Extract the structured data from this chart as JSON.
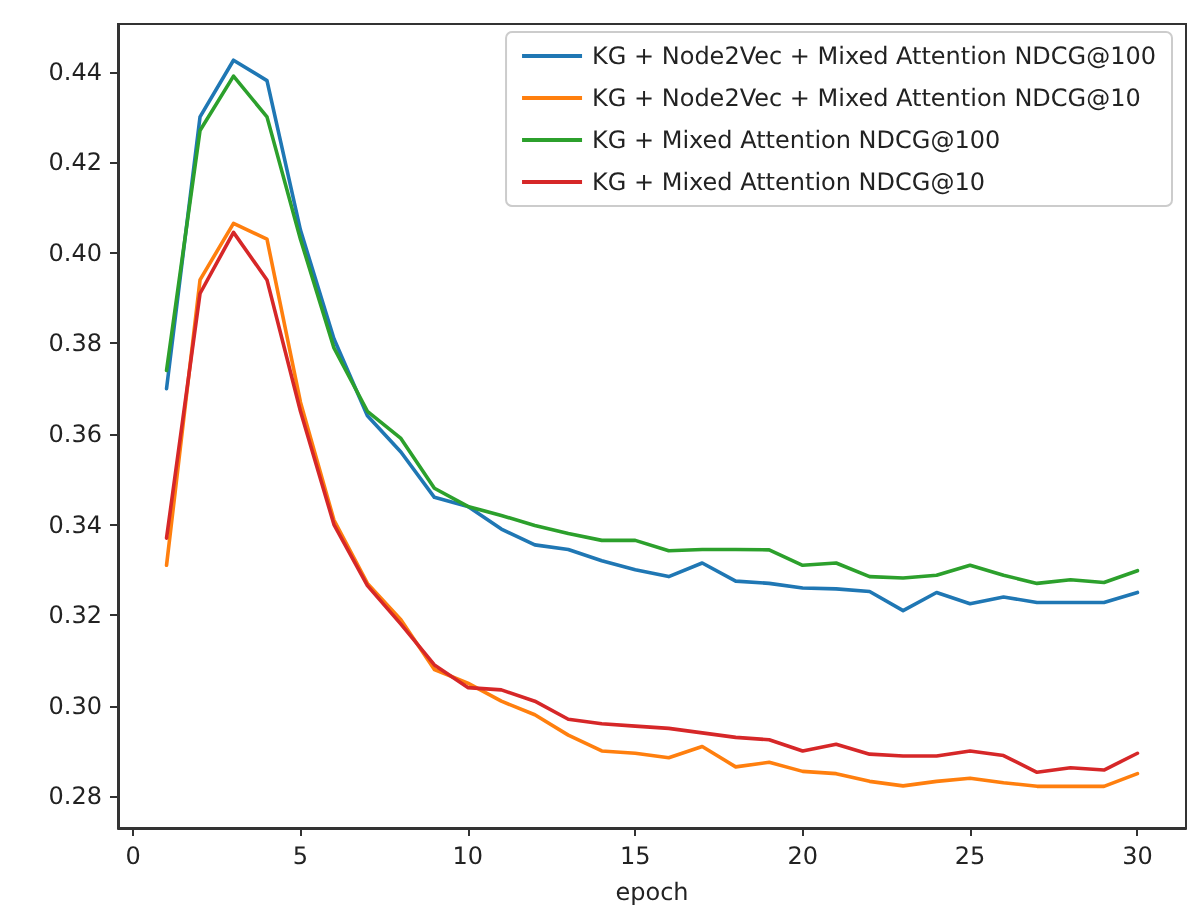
{
  "chart_data": {
    "type": "line",
    "xlabel": "epoch",
    "legend": "top right",
    "grid": false,
    "marker": "none",
    "line_style": "solid",
    "x": [
      1,
      2,
      3,
      4,
      5,
      6,
      7,
      8,
      9,
      10,
      11,
      12,
      13,
      14,
      15,
      16,
      17,
      18,
      19,
      20,
      21,
      22,
      23,
      24,
      25,
      26,
      27,
      28,
      29,
      30
    ],
    "xlim": [
      -0.45,
      31.45
    ],
    "xticks": [
      0,
      5,
      10,
      15,
      20,
      25,
      30
    ],
    "ylim": [
      0.273,
      0.4505
    ],
    "yticks": [
      {
        "value": 0.28,
        "label": "0.28"
      },
      {
        "value": 0.3,
        "label": "0.30"
      },
      {
        "value": 0.32,
        "label": "0.32"
      },
      {
        "value": 0.34,
        "label": "0.34"
      },
      {
        "value": 0.36,
        "label": "0.36"
      },
      {
        "value": 0.38,
        "label": "0.38"
      },
      {
        "value": 0.4,
        "label": "0.40"
      },
      {
        "value": 0.42,
        "label": "0.42"
      },
      {
        "value": 0.44,
        "label": "0.44"
      }
    ],
    "series": [
      {
        "name": "KG + Node2Vec + Mixed Attention NDCG@100",
        "color": "#1f77b4",
        "values": [
          0.37,
          0.43,
          0.4425,
          0.438,
          0.405,
          0.381,
          0.364,
          0.356,
          0.346,
          0.344,
          0.339,
          0.3355,
          0.3345,
          0.332,
          0.33,
          0.3285,
          0.3315,
          0.3275,
          0.327,
          0.326,
          0.3258,
          0.3252,
          0.321,
          0.325,
          0.3225,
          0.324,
          0.3228,
          0.3228,
          0.3228,
          0.325
        ]
      },
      {
        "name": "KG + Node2Vec + Mixed Attention NDCG@10",
        "color": "#ff7f0e",
        "values": [
          0.331,
          0.394,
          0.4065,
          0.403,
          0.367,
          0.341,
          0.327,
          0.319,
          0.308,
          0.305,
          0.301,
          0.298,
          0.2935,
          0.29,
          0.2895,
          0.2885,
          0.291,
          0.2865,
          0.2875,
          0.2855,
          0.285,
          0.2833,
          0.2823,
          0.2833,
          0.284,
          0.283,
          0.2822,
          0.2822,
          0.2822,
          0.285
        ]
      },
      {
        "name": "KG + Mixed Attention NDCG@100",
        "color": "#2ca02c",
        "values": [
          0.374,
          0.427,
          0.439,
          0.43,
          0.403,
          0.379,
          0.365,
          0.359,
          0.348,
          0.344,
          0.342,
          0.3398,
          0.338,
          0.3365,
          0.3365,
          0.3342,
          0.3345,
          0.3345,
          0.3344,
          0.331,
          0.3315,
          0.3285,
          0.3282,
          0.3288,
          0.331,
          0.3288,
          0.327,
          0.3278,
          0.3272,
          0.3298
        ]
      },
      {
        "name": "KG + Mixed Attention NDCG@10",
        "color": "#d62728",
        "values": [
          0.337,
          0.391,
          0.4045,
          0.394,
          0.365,
          0.34,
          0.3265,
          0.318,
          0.309,
          0.304,
          0.3035,
          0.301,
          0.297,
          0.296,
          0.2955,
          0.295,
          0.294,
          0.293,
          0.2925,
          0.29,
          0.2915,
          0.2893,
          0.2889,
          0.2889,
          0.29,
          0.289,
          0.2853,
          0.2863,
          0.2858,
          0.2895
        ]
      }
    ]
  }
}
